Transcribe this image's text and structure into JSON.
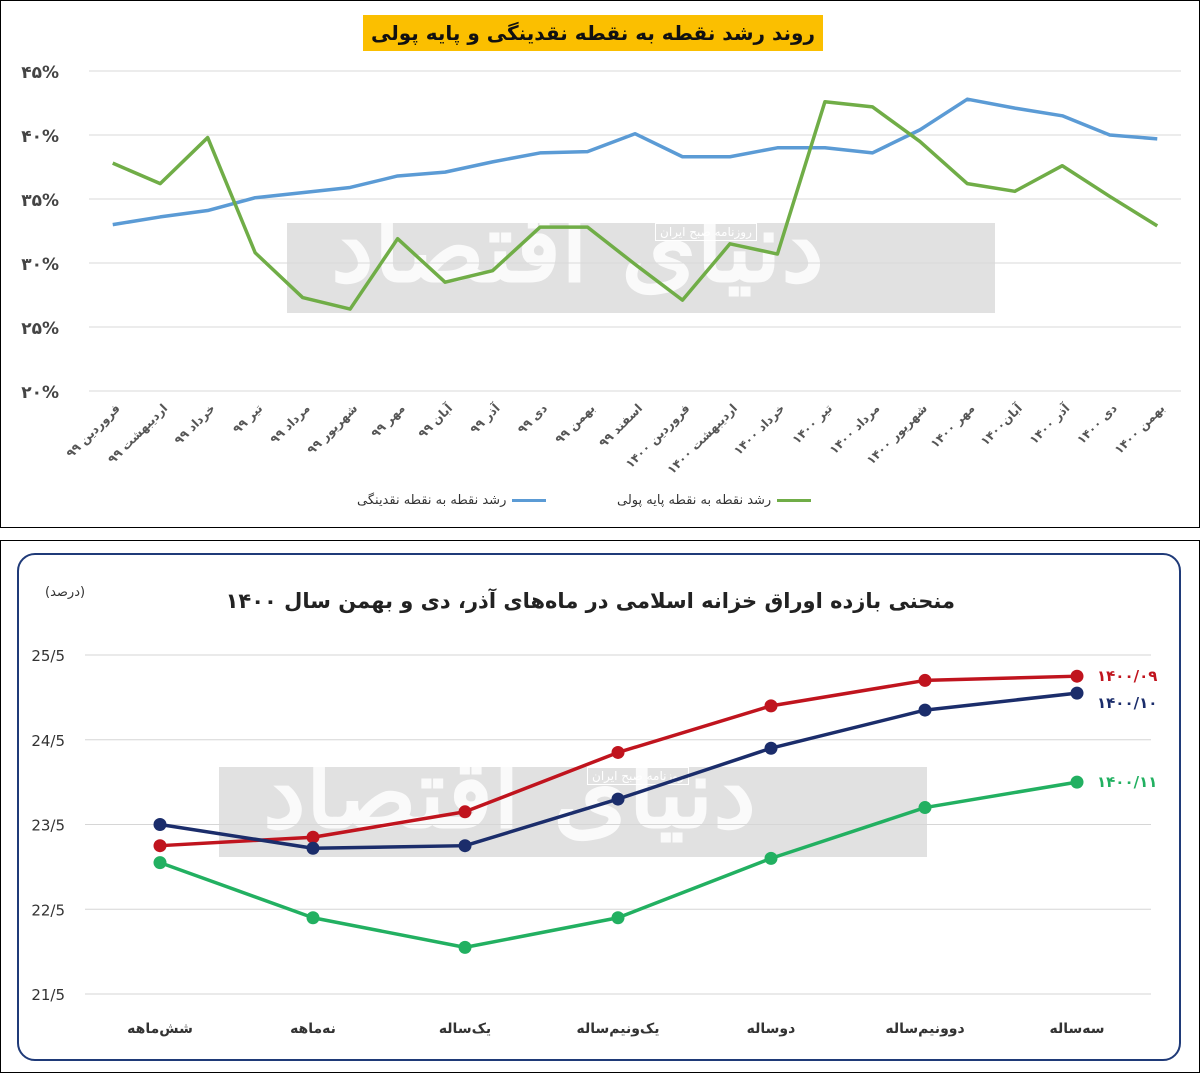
{
  "chart_data": [
    {
      "type": "line",
      "title": "روند رشد نقطه به نقطه نقدینگی و پایه پولی",
      "xlabel": "",
      "ylabel": "",
      "ylim": [
        20,
        45
      ],
      "yticks": [
        "۲۰%",
        "۲۵%",
        "۳۰%",
        "۳۵%",
        "۴۰%",
        "۴۵%"
      ],
      "ytick_values": [
        20,
        25,
        30,
        35,
        40,
        45
      ],
      "grid": true,
      "legend": "bottom",
      "categories": [
        "فروردین ۹۹",
        "اردیبهشت ۹۹",
        "خرداد ۹۹",
        "تیر ۹۹",
        "مرداد ۹۹",
        "شهریور ۹۹",
        "مهر ۹۹",
        "آبان ۹۹",
        "آذر ۹۹",
        "دی ۹۹",
        "بهمن ۹۹",
        "اسفند ۹۹",
        "فروردین ۱۴۰۰",
        "اردیبهشت ۱۴۰۰",
        "خرداد ۱۴۰۰",
        "تیر ۱۴۰۰",
        "مرداد ۱۴۰۰",
        "شهریور ۱۴۰۰",
        "مهر ۱۴۰۰",
        "آبان۱۴۰۰",
        "آذر ۱۴۰۰",
        "دی ۱۴۰۰",
        "بهمن ۱۴۰۰"
      ],
      "series": [
        {
          "name": "رشد نقطه به نقطه نقدینگی",
          "color": "#5b9bd5",
          "values": [
            33.0,
            33.6,
            34.1,
            35.1,
            35.5,
            35.9,
            36.8,
            37.1,
            37.9,
            38.6,
            38.7,
            40.1,
            38.3,
            38.3,
            39.0,
            39.0,
            38.6,
            40.4,
            42.8,
            42.1,
            41.5,
            40.0,
            39.7
          ]
        },
        {
          "name": "رشد نقطه به نقطه پایه پولی",
          "color": "#70ad47",
          "values": [
            37.8,
            36.2,
            39.8,
            30.8,
            27.3,
            26.4,
            31.9,
            28.5,
            29.4,
            32.8,
            32.8,
            29.9,
            27.1,
            31.5,
            30.7,
            42.6,
            42.2,
            39.5,
            36.2,
            35.6,
            37.6,
            35.2,
            32.9
          ]
        }
      ]
    },
    {
      "type": "line",
      "title": "منحنی بازده اوراق خزانه اسلامی در ماه‌های آذر، دی و بهمن سال ۱۴۰۰",
      "unit_label": "(درصد)",
      "xlabel": "",
      "ylabel": "",
      "ylim": [
        21.5,
        25.5
      ],
      "yticks": [
        "21/5",
        "22/5",
        "23/5",
        "24/5",
        "25/5"
      ],
      "ytick_values": [
        21.5,
        22.5,
        23.5,
        24.5,
        25.5
      ],
      "grid": true,
      "categories": [
        "شش‌ماهه",
        "نه‌ماهه",
        "یک‌ساله",
        "یک‌ونیم‌ساله",
        "دوساله",
        "دوونیم‌ساله",
        "سه‌ساله"
      ],
      "series": [
        {
          "name": "۱۴۰۰/۰۹",
          "color": "#c0141e",
          "values": [
            23.25,
            23.35,
            23.65,
            24.35,
            24.9,
            25.2,
            25.25
          ]
        },
        {
          "name": "۱۴۰۰/۱۰",
          "color": "#1b2d6b",
          "values": [
            23.5,
            23.22,
            23.25,
            23.8,
            24.4,
            24.85,
            25.05
          ]
        },
        {
          "name": "۱۴۰۰/۱۱",
          "color": "#22b061",
          "values": [
            23.05,
            22.4,
            22.05,
            22.4,
            23.1,
            23.7,
            24.0
          ]
        }
      ]
    }
  ],
  "watermark": {
    "main_text": "دنیای اقتصاد",
    "sub_text": "روزنامه صبح ایران"
  }
}
